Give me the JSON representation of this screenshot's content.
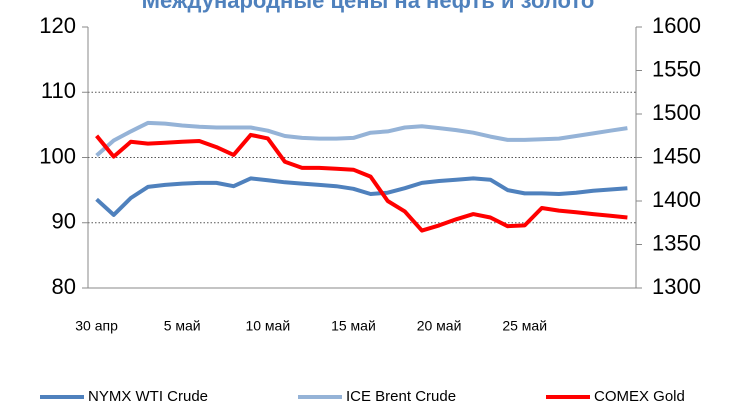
{
  "chart_data": {
    "type": "line",
    "title": "Международные цены на нефть и золото",
    "categories": [
      "30 апр",
      null,
      null,
      null,
      null,
      "5 май",
      null,
      null,
      null,
      null,
      "10 май",
      null,
      null,
      null,
      null,
      "15 май",
      null,
      null,
      null,
      null,
      "20 май",
      null,
      null,
      null,
      null,
      "25 май",
      null,
      null,
      null,
      null,
      null,
      null
    ],
    "series": [
      {
        "name": "NYMX WTI Crude",
        "color": "#4f81bd",
        "values": [
          93.6,
          91.2,
          93.8,
          95.5,
          95.8,
          96.0,
          96.1,
          96.1,
          95.6,
          96.8,
          96.5,
          96.2,
          96.0,
          95.8,
          95.6,
          95.2,
          94.4,
          94.6,
          95.3,
          96.1,
          96.4,
          96.6,
          96.8,
          96.6,
          95.0,
          94.5,
          94.5,
          94.4,
          94.6,
          94.9,
          95.1,
          95.3
        ]
      },
      {
        "name": "ICE Brent Crude",
        "color": "#95b3d7",
        "values": [
          100.3,
          102.6,
          104.0,
          105.3,
          105.2,
          104.9,
          104.7,
          104.6,
          104.6,
          104.6,
          104.1,
          103.3,
          103.0,
          102.9,
          102.9,
          103.0,
          103.8,
          104.0,
          104.6,
          104.8,
          104.5,
          104.2,
          103.8,
          103.2,
          102.7,
          102.7,
          102.8,
          102.9,
          103.3,
          103.7,
          104.1,
          104.5
        ]
      },
      {
        "name": "COMEX Gold",
        "color": "#ff0000",
        "axis": "y2",
        "values": [
          1475,
          1451,
          1468,
          1466,
          1467,
          1468,
          1469,
          1462,
          1453,
          1476,
          1472,
          1445,
          1438,
          1438,
          1437,
          1436,
          1428,
          1400,
          1388,
          1366,
          1372,
          1379,
          1385,
          1381,
          1371,
          1372,
          1392,
          1389,
          1387,
          1385,
          1383,
          1381
        ]
      }
    ],
    "ylim": [
      80,
      120
    ],
    "yticks": [
      80,
      90,
      100,
      110,
      120
    ],
    "y2lim": [
      1300,
      1600
    ],
    "y2ticks": [
      1300,
      1350,
      1400,
      1450,
      1500,
      1550,
      1600
    ],
    "grid": true,
    "legend": "bottom"
  }
}
